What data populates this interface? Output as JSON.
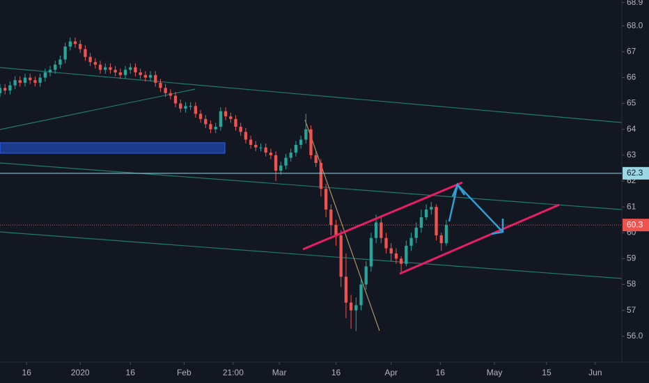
{
  "chart_data": {
    "type": "candlestick",
    "x": [
      0,
      1,
      2,
      3,
      4,
      5,
      6,
      7,
      8,
      9,
      10,
      11,
      12,
      13,
      14,
      15,
      16,
      17,
      18,
      19,
      20,
      21,
      22,
      23,
      24,
      25,
      26,
      27,
      28,
      29,
      30,
      31,
      32,
      33,
      34,
      35,
      36,
      37,
      38,
      39,
      40,
      41,
      42,
      43,
      44,
      45,
      46,
      47,
      48,
      49,
      50,
      51,
      52,
      53,
      54,
      55,
      56,
      57,
      58,
      59,
      60,
      61,
      62,
      63,
      64,
      65,
      66,
      67,
      68,
      69,
      70,
      71,
      72,
      73,
      74,
      75,
      76,
      77,
      78,
      79,
      80,
      81,
      82,
      83,
      84,
      85,
      86,
      87,
      88,
      89
    ],
    "open": [
      65.4,
      65.6,
      65.5,
      65.7,
      65.9,
      65.8,
      66.0,
      65.9,
      65.8,
      66.0,
      66.2,
      66.3,
      66.5,
      66.7,
      67.2,
      67.4,
      67.3,
      67.1,
      66.8,
      66.6,
      66.5,
      66.3,
      66.4,
      66.3,
      66.2,
      66.1,
      66.3,
      66.4,
      66.2,
      66.1,
      66.0,
      66.1,
      65.8,
      65.6,
      65.4,
      65.3,
      65.0,
      64.8,
      64.9,
      64.9,
      64.6,
      64.4,
      64.2,
      64.0,
      64.1,
      64.7,
      64.5,
      64.4,
      64.1,
      63.9,
      63.6,
      63.4,
      63.3,
      63.3,
      63.1,
      63.0,
      62.4,
      62.6,
      62.9,
      63.1,
      63.4,
      63.6,
      64.0,
      63.0,
      62.7,
      61.7,
      60.9,
      60.3,
      59.9,
      58.3,
      57.3,
      57.0,
      57.2,
      58.0,
      58.7,
      59.8,
      60.4,
      59.8,
      59.4,
      59.2,
      59.0,
      58.8,
      59.5,
      59.8,
      60.2,
      60.6,
      60.9,
      61.0,
      59.9,
      59.6
    ],
    "high": [
      65.75,
      65.75,
      65.85,
      66.05,
      66.05,
      66.15,
      66.15,
      66.05,
      66.15,
      66.35,
      66.45,
      66.65,
      66.85,
      67.35,
      67.55,
      67.55,
      67.45,
      67.25,
      66.95,
      66.75,
      66.65,
      66.55,
      66.55,
      66.45,
      66.35,
      66.45,
      66.55,
      66.55,
      66.35,
      66.25,
      66.25,
      66.25,
      65.95,
      65.75,
      65.55,
      65.45,
      65.15,
      65.05,
      65.05,
      65.05,
      64.75,
      64.55,
      64.35,
      64.25,
      64.85,
      64.85,
      64.65,
      64.55,
      64.25,
      64.05,
      63.75,
      63.55,
      63.45,
      63.45,
      63.25,
      63.15,
      62.75,
      63.05,
      63.25,
      63.55,
      63.75,
      64.6,
      64.15,
      63.15,
      62.85,
      61.9,
      61.1,
      60.5,
      60.1,
      59.2,
      57.6,
      57.5,
      58.2,
      58.9,
      60.0,
      60.7,
      60.6,
      60.0,
      59.6,
      59.4,
      59.1,
      59.7,
      60.0,
      60.4,
      60.9,
      61.1,
      61.2,
      61.1,
      60.0,
      60.5
    ],
    "low": [
      65.25,
      65.35,
      65.35,
      65.55,
      65.65,
      65.65,
      65.75,
      65.65,
      65.65,
      65.85,
      66.05,
      66.15,
      66.35,
      66.55,
      67.05,
      67.15,
      66.95,
      66.65,
      66.45,
      66.35,
      66.15,
      66.15,
      66.15,
      66.05,
      65.95,
      65.95,
      66.15,
      66.05,
      65.95,
      65.85,
      65.85,
      65.65,
      65.45,
      65.25,
      65.15,
      64.85,
      64.65,
      64.65,
      64.75,
      64.45,
      64.25,
      64.05,
      63.85,
      63.85,
      63.95,
      64.35,
      64.25,
      63.95,
      63.75,
      63.45,
      63.25,
      63.15,
      63.15,
      62.95,
      62.85,
      62.0,
      62.25,
      62.45,
      62.75,
      62.95,
      63.25,
      63.45,
      62.85,
      62.55,
      61.4,
      60.6,
      59.9,
      59.5,
      57.9,
      56.7,
      56.3,
      56.2,
      57.0,
      57.8,
      58.5,
      59.6,
      59.6,
      59.2,
      58.9,
      58.8,
      58.5,
      58.7,
      59.3,
      59.6,
      60.0,
      60.5,
      60.7,
      59.7,
      59.3,
      59.5
    ],
    "close": [
      65.6,
      65.5,
      65.7,
      65.9,
      65.8,
      66.0,
      65.9,
      65.8,
      66.0,
      66.2,
      66.3,
      66.5,
      66.7,
      67.2,
      67.4,
      67.3,
      67.1,
      66.8,
      66.6,
      66.5,
      66.3,
      66.4,
      66.3,
      66.2,
      66.1,
      66.3,
      66.4,
      66.2,
      66.1,
      66.0,
      66.1,
      65.8,
      65.6,
      65.4,
      65.3,
      65.0,
      64.8,
      64.9,
      64.9,
      64.6,
      64.4,
      64.2,
      64.0,
      64.1,
      64.7,
      64.5,
      64.4,
      64.1,
      63.9,
      63.6,
      63.4,
      63.3,
      63.3,
      63.1,
      63.0,
      62.4,
      62.6,
      62.9,
      63.1,
      63.4,
      63.6,
      64.0,
      63.0,
      62.7,
      61.7,
      60.9,
      60.3,
      59.9,
      58.3,
      57.3,
      57.0,
      57.2,
      58.0,
      58.7,
      59.8,
      60.4,
      59.8,
      59.4,
      59.2,
      59.0,
      58.8,
      59.5,
      59.8,
      60.2,
      60.6,
      60.9,
      61.0,
      59.9,
      59.6,
      60.3
    ],
    "up_color": "#26a69a",
    "down_color": "#ef5350",
    "xlim": [
      0,
      124
    ],
    "ylim": [
      55,
      69
    ],
    "xticks": [
      {
        "value": 5.3,
        "label": "16"
      },
      {
        "value": 16,
        "label": "2020"
      },
      {
        "value": 26,
        "label": "16"
      },
      {
        "value": 36.7,
        "label": "Feb"
      },
      {
        "value": 46.5,
        "label": "21:00"
      },
      {
        "value": 55.7,
        "label": "Mar"
      },
      {
        "value": 67,
        "label": "16"
      },
      {
        "value": 78,
        "label": "Apr"
      },
      {
        "value": 87.8,
        "label": "16"
      },
      {
        "value": 98.6,
        "label": "May"
      },
      {
        "value": 109,
        "label": "15"
      },
      {
        "value": 118.7,
        "label": "Jun"
      }
    ],
    "yticks": [
      {
        "value": 56,
        "label": "56.0"
      },
      57,
      58,
      59,
      60,
      61,
      62,
      63,
      64,
      65,
      66,
      67,
      {
        "value": 68,
        "label": "68.0"
      },
      68.9
    ],
    "price_lines": [
      {
        "value": 62.3,
        "color": "#9ad6e3"
      },
      {
        "value": 60.3,
        "color": "#ef5350"
      }
    ]
  }
}
